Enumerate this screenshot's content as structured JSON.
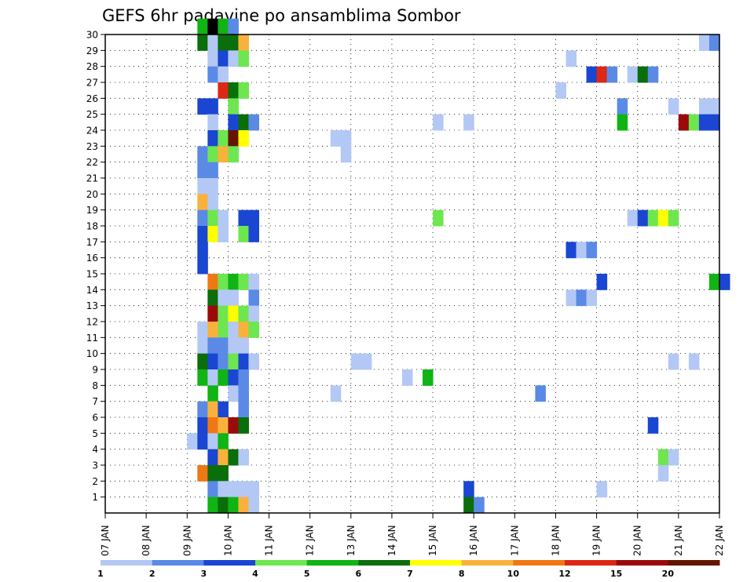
{
  "chart_data": {
    "type": "heatmap",
    "title": "GEFS 6hr padavine po ansamblima Sombor",
    "y_ticks": [
      "30",
      "29",
      "28",
      "27",
      "26",
      "25",
      "24",
      "23",
      "22",
      "21",
      "20",
      "19",
      "18",
      "17",
      "16",
      "15",
      "14",
      "13",
      "12",
      "11",
      "10",
      "9",
      "8",
      "7",
      "6",
      "5",
      "4",
      "3",
      "2",
      "1"
    ],
    "y_range": [
      0,
      30
    ],
    "x_ticks": [
      "07 JAN",
      "08 JAN",
      "09 JAN",
      "10 JAN",
      "11 JAN",
      "12 JAN",
      "13 JAN",
      "14 JAN",
      "15 JAN",
      "16 JAN",
      "17 JAN",
      "18 JAN",
      "19 JAN",
      "20 JAN",
      "21 JAN",
      "22 JAN"
    ],
    "x_range_steps": [
      0,
      60
    ],
    "x_step_hours": 6,
    "grid": true,
    "colorbar": {
      "labels": [
        "1",
        "2",
        "3",
        "4",
        "5",
        "6",
        "7",
        "8",
        "10",
        "12",
        "15",
        "20"
      ],
      "colors": [
        "#b4c8f5",
        "#5a8ae6",
        "#1a46d2",
        "#6ee650",
        "#10b414",
        "#0a6e0a",
        "#ffff00",
        "#f8b23c",
        "#f07814",
        "#dc2814",
        "#9b0a0a",
        "#641400"
      ]
    },
    "cells": [
      [
        9,
        30,
        4
      ],
      [
        10,
        30,
        13
      ],
      [
        11,
        30,
        4
      ],
      [
        12,
        30,
        1
      ],
      [
        9,
        29,
        5
      ],
      [
        10,
        29,
        0
      ],
      [
        11,
        29,
        5
      ],
      [
        12,
        29,
        5
      ],
      [
        13,
        29,
        7
      ],
      [
        58,
        29,
        0
      ],
      [
        59,
        29,
        1
      ],
      [
        10,
        28,
        0
      ],
      [
        11,
        28,
        2
      ],
      [
        12,
        28,
        0
      ],
      [
        13,
        28,
        3
      ],
      [
        45,
        28,
        0
      ],
      [
        10,
        27,
        1
      ],
      [
        11,
        27,
        0
      ],
      [
        47,
        27,
        2
      ],
      [
        48,
        27,
        9
      ],
      [
        49,
        27,
        1
      ],
      [
        51,
        27,
        0
      ],
      [
        52,
        27,
        5
      ],
      [
        53,
        27,
        1
      ],
      [
        11,
        26,
        9
      ],
      [
        12,
        26,
        5
      ],
      [
        13,
        26,
        3
      ],
      [
        44,
        26,
        0
      ],
      [
        9,
        25,
        2
      ],
      [
        10,
        25,
        2
      ],
      [
        12,
        25,
        3
      ],
      [
        50,
        25,
        1
      ],
      [
        55,
        25,
        0
      ],
      [
        58,
        25,
        0
      ],
      [
        59,
        25,
        0
      ],
      [
        10,
        24,
        0
      ],
      [
        12,
        24,
        2
      ],
      [
        13,
        24,
        5
      ],
      [
        14,
        24,
        1
      ],
      [
        32,
        24,
        0
      ],
      [
        35,
        24,
        0
      ],
      [
        50,
        24,
        4
      ],
      [
        56,
        24,
        10
      ],
      [
        57,
        24,
        3
      ],
      [
        58,
        24,
        2
      ],
      [
        59,
        24,
        2
      ],
      [
        10,
        23,
        2
      ],
      [
        11,
        23,
        3
      ],
      [
        12,
        23,
        11
      ],
      [
        13,
        23,
        6
      ],
      [
        22,
        23,
        0
      ],
      [
        23,
        23,
        0
      ],
      [
        9,
        22,
        1
      ],
      [
        10,
        22,
        3
      ],
      [
        11,
        22,
        7
      ],
      [
        12,
        22,
        3
      ],
      [
        23,
        22,
        0
      ],
      [
        9,
        21,
        1
      ],
      [
        10,
        21,
        1
      ],
      [
        9,
        20,
        0
      ],
      [
        10,
        20,
        0
      ],
      [
        9,
        19,
        7
      ],
      [
        10,
        19,
        0
      ],
      [
        9,
        18,
        1
      ],
      [
        10,
        18,
        3
      ],
      [
        11,
        18,
        0
      ],
      [
        13,
        18,
        2
      ],
      [
        14,
        18,
        2
      ],
      [
        32,
        18,
        3
      ],
      [
        51,
        18,
        0
      ],
      [
        52,
        18,
        2
      ],
      [
        53,
        18,
        3
      ],
      [
        54,
        18,
        6
      ],
      [
        55,
        18,
        3
      ],
      [
        9,
        17,
        2
      ],
      [
        10,
        17,
        6
      ],
      [
        11,
        17,
        0
      ],
      [
        13,
        17,
        3
      ],
      [
        14,
        17,
        2
      ],
      [
        9,
        16,
        2
      ],
      [
        45,
        16,
        2
      ],
      [
        46,
        16,
        0
      ],
      [
        47,
        16,
        1
      ],
      [
        9,
        15,
        2
      ],
      [
        10,
        14,
        8
      ],
      [
        11,
        14,
        3
      ],
      [
        12,
        14,
        4
      ],
      [
        13,
        14,
        3
      ],
      [
        14,
        14,
        0
      ],
      [
        48,
        14,
        2
      ],
      [
        59,
        14,
        4
      ],
      [
        60,
        14,
        2
      ],
      [
        10,
        13,
        5
      ],
      [
        11,
        13,
        0
      ],
      [
        12,
        13,
        0
      ],
      [
        14,
        13,
        1
      ],
      [
        45,
        13,
        0
      ],
      [
        46,
        13,
        1
      ],
      [
        47,
        13,
        0
      ],
      [
        10,
        12,
        10
      ],
      [
        11,
        12,
        3
      ],
      [
        12,
        12,
        6
      ],
      [
        13,
        12,
        3
      ],
      [
        14,
        12,
        0
      ],
      [
        9,
        11,
        0
      ],
      [
        10,
        11,
        7
      ],
      [
        11,
        11,
        3
      ],
      [
        12,
        11,
        0
      ],
      [
        13,
        11,
        7
      ],
      [
        14,
        11,
        3
      ],
      [
        9,
        10,
        0
      ],
      [
        10,
        10,
        1
      ],
      [
        11,
        10,
        1
      ],
      [
        12,
        10,
        0
      ],
      [
        13,
        10,
        0
      ],
      [
        9,
        9,
        5
      ],
      [
        10,
        9,
        2
      ],
      [
        11,
        9,
        1
      ],
      [
        12,
        9,
        3
      ],
      [
        13,
        9,
        2
      ],
      [
        14,
        9,
        0
      ],
      [
        24,
        9,
        0
      ],
      [
        25,
        9,
        0
      ],
      [
        55,
        9,
        0
      ],
      [
        57,
        9,
        0
      ],
      [
        9,
        8,
        4
      ],
      [
        10,
        8,
        0
      ],
      [
        11,
        8,
        4
      ],
      [
        12,
        8,
        2
      ],
      [
        13,
        8,
        1
      ],
      [
        29,
        8,
        0
      ],
      [
        31,
        8,
        4
      ],
      [
        10,
        7,
        4
      ],
      [
        12,
        7,
        0
      ],
      [
        13,
        7,
        1
      ],
      [
        22,
        7,
        0
      ],
      [
        42,
        7,
        1
      ],
      [
        9,
        6,
        1
      ],
      [
        10,
        6,
        7
      ],
      [
        11,
        6,
        2
      ],
      [
        13,
        6,
        1
      ],
      [
        9,
        5,
        2
      ],
      [
        10,
        5,
        8
      ],
      [
        11,
        5,
        7
      ],
      [
        12,
        5,
        10
      ],
      [
        13,
        5,
        5
      ],
      [
        53,
        5,
        2
      ],
      [
        8,
        4,
        0
      ],
      [
        9,
        4,
        2
      ],
      [
        10,
        4,
        0
      ],
      [
        11,
        4,
        4
      ],
      [
        10,
        3,
        2
      ],
      [
        11,
        3,
        7
      ],
      [
        12,
        3,
        5
      ],
      [
        13,
        3,
        0
      ],
      [
        54,
        3,
        3
      ],
      [
        55,
        3,
        0
      ],
      [
        9,
        2,
        8
      ],
      [
        10,
        2,
        5
      ],
      [
        11,
        2,
        5
      ],
      [
        54,
        2,
        0
      ],
      [
        10,
        1,
        1
      ],
      [
        11,
        1,
        0
      ],
      [
        12,
        1,
        0
      ],
      [
        13,
        1,
        0
      ],
      [
        14,
        1,
        0
      ],
      [
        35,
        1,
        2
      ],
      [
        48,
        1,
        0
      ],
      [
        10,
        0,
        4
      ],
      [
        11,
        0,
        5
      ],
      [
        12,
        0,
        4
      ],
      [
        13,
        0,
        7
      ],
      [
        14,
        0,
        0
      ],
      [
        35,
        0,
        5
      ],
      [
        36,
        0,
        1
      ]
    ]
  }
}
